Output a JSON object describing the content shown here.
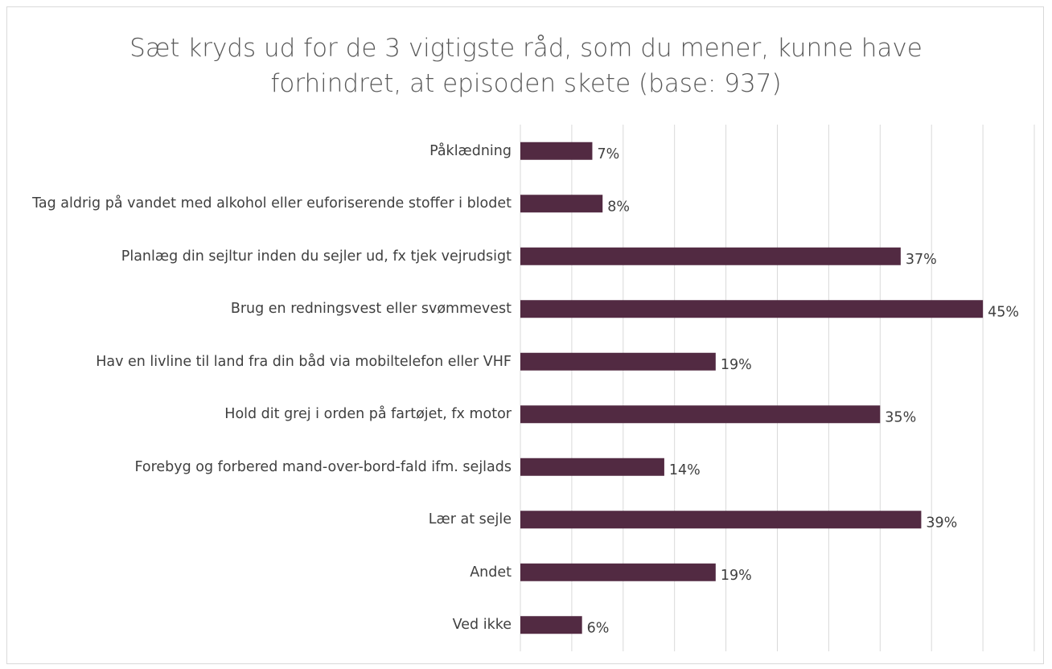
{
  "chart_data": {
    "type": "bar",
    "orientation": "horizontal",
    "title": "Sæt kryds ud for de 3 vigtigste råd, som du mener, kunne have forhindret, at episoden skete (base: 937)",
    "categories": [
      "Påklædning",
      "Tag aldrig på vandet med alkohol eller euforiserende stoffer i blodet",
      "Planlæg din sejltur inden du sejler ud, fx tjek vejrudsigt",
      "Brug en redningsvest eller svømmevest",
      "Hav en livline til land fra din båd via mobiltelefon eller VHF",
      "Hold dit grej i orden på fartøjet, fx motor",
      "Forebyg og forbered mand-over-bord-fald ifm. sejlads",
      "Lær at sejle",
      "Andet",
      "Ved ikke"
    ],
    "values": [
      7,
      8,
      37,
      45,
      19,
      35,
      14,
      39,
      19,
      6
    ],
    "value_labels": [
      "7%",
      "8%",
      "37%",
      "45%",
      "19%",
      "35%",
      "14%",
      "39%",
      "19%",
      "6%"
    ],
    "color": "#522a42",
    "xlim": [
      0,
      50
    ],
    "xticks": [
      0,
      5,
      10,
      15,
      20,
      25,
      30,
      35,
      40,
      45,
      50
    ],
    "grid": true
  }
}
